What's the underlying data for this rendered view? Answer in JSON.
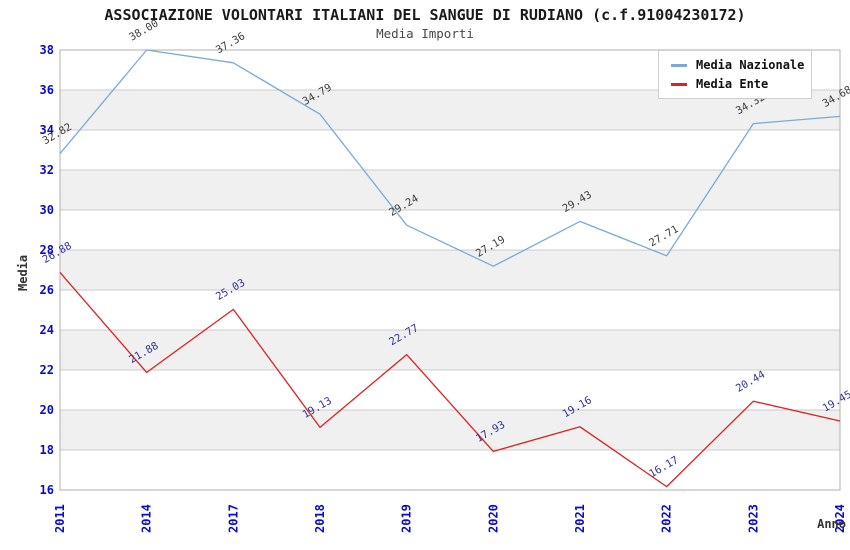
{
  "chart_data": {
    "type": "line",
    "title": "ASSOCIAZIONE VOLONTARI ITALIANI DEL SANGUE DI RUDIANO (c.f.91004230172)",
    "subtitle": "Media Importi",
    "xlabel": "Anno",
    "ylabel": "Media",
    "categories": [
      "2011",
      "2014",
      "2017",
      "2018",
      "2019",
      "2020",
      "2021",
      "2022",
      "2023",
      "2024"
    ],
    "y_ticks": [
      38,
      36,
      34,
      32,
      30,
      28,
      26,
      24,
      22,
      20,
      18,
      16
    ],
    "ylim": [
      16,
      38
    ],
    "grid": true,
    "legend_position": "top-right",
    "series": [
      {
        "name": "Media Nazionale",
        "color": "#7aaad9",
        "label_color": "#3d3d3d",
        "values": [
          32.82,
          38.0,
          37.36,
          34.79,
          29.24,
          27.19,
          29.43,
          27.71,
          34.32,
          34.68
        ],
        "labels": [
          "32.82",
          "38.00",
          "37.36",
          "34.79",
          "29.24",
          "27.19",
          "29.43",
          "27.71",
          "34.32",
          "34.68"
        ]
      },
      {
        "name": "Media Ente",
        "color": "#e02020",
        "label_color": "#31319c",
        "values": [
          26.88,
          21.88,
          25.03,
          19.13,
          22.77,
          17.93,
          19.16,
          16.17,
          20.44,
          19.45
        ],
        "labels": [
          "26.88",
          "21.88",
          "25.03",
          "19.13",
          "22.77",
          "17.93",
          "19.16",
          "16.17",
          "20.44",
          "19.45"
        ]
      }
    ],
    "styles": {
      "tick_color": "#0a0acc",
      "grid_color": "#cccccc",
      "band_color": "#f0f0f0",
      "border_color": "#b0b0b0",
      "background": "#ffffff"
    }
  }
}
